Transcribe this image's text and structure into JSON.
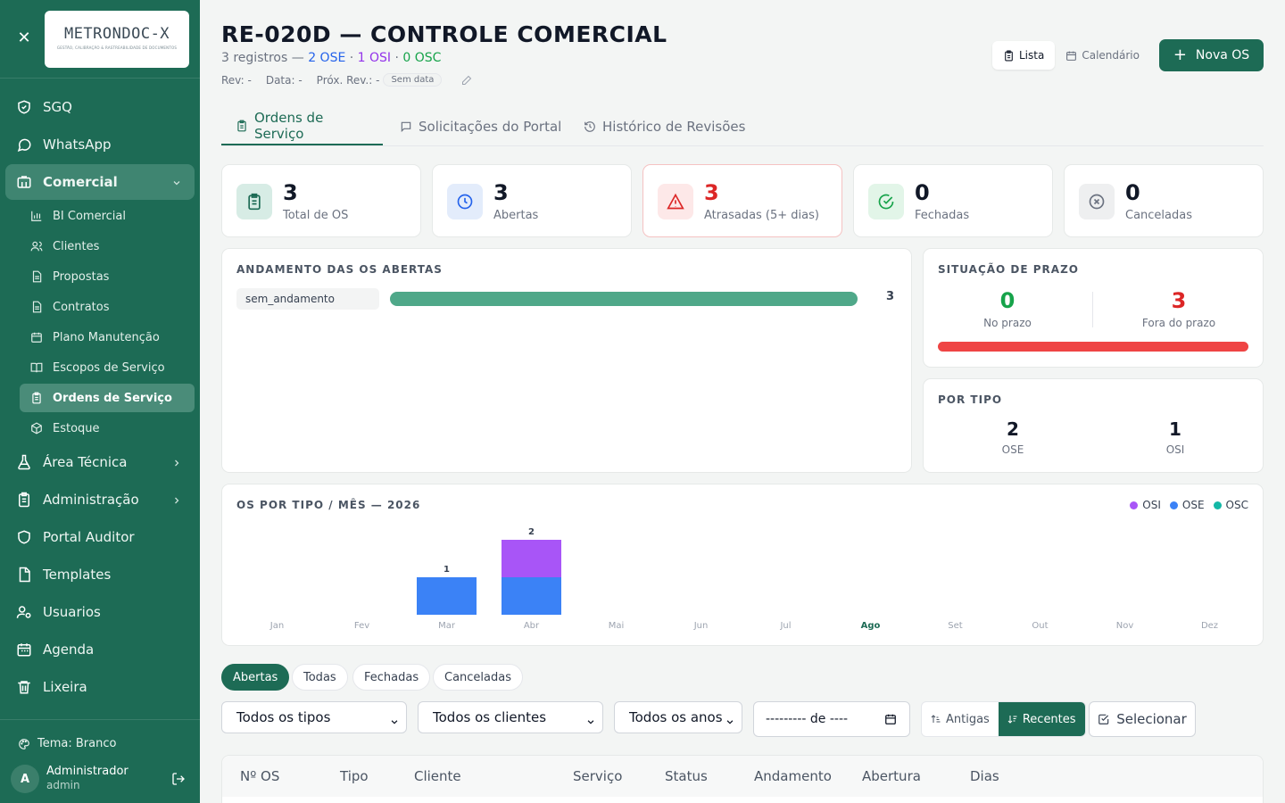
{
  "sidebar": {
    "logo_text": "METRONDOC-X",
    "logo_tagline": "GESTÃO, CALIBRAÇÃO & RASTREABILIDADE DE DOCUMENTOS",
    "items": [
      {
        "label": "SGQ",
        "icon": "shield-check-icon"
      },
      {
        "label": "WhatsApp",
        "icon": "chat-bubble-icon"
      },
      {
        "label": "Comercial",
        "icon": "building-icon"
      },
      {
        "label": "Área Técnica",
        "icon": "flask-icon"
      },
      {
        "label": "Administração",
        "icon": "clipboard-icon"
      },
      {
        "label": "Portal Auditor",
        "icon": "shield-icon"
      },
      {
        "label": "Templates",
        "icon": "file-icon"
      },
      {
        "label": "Usuarios",
        "icon": "user-cog-icon"
      },
      {
        "label": "Agenda",
        "icon": "calendar-icon"
      },
      {
        "label": "Lixeira",
        "icon": "trash-icon"
      }
    ],
    "sub_items": [
      {
        "label": "BI Comercial",
        "icon": "bar-chart-icon"
      },
      {
        "label": "Clientes",
        "icon": "users-icon"
      },
      {
        "label": "Propostas",
        "icon": "document-icon"
      },
      {
        "label": "Contratos",
        "icon": "document-icon"
      },
      {
        "label": "Plano Manutenção",
        "icon": "calendar-icon"
      },
      {
        "label": "Escopos de Serviço",
        "icon": "book-icon"
      },
      {
        "label": "Ordens de Serviço",
        "icon": "clipboard-list-icon"
      },
      {
        "label": "Estoque",
        "icon": "box-icon"
      }
    ],
    "theme_label": "Tema: Branco",
    "user": {
      "initial": "A",
      "name": "Administrador",
      "role": "admin"
    }
  },
  "header": {
    "title": "RE-020D — CONTROLE COMERCIAL",
    "subtitle_prefix": "3 registros — ",
    "subtitle_ose": "2 OSE",
    "subtitle_sep1": " · ",
    "subtitle_osi": "1 OSI",
    "subtitle_sep2": " · ",
    "subtitle_osc": "0 OSC",
    "rev_label": "Rev: -",
    "data_label": "Data: -",
    "prox_rev_label": "Próx. Rev.: -",
    "prox_rev_badge": "Sem data",
    "view_list": "Lista",
    "view_calendar": "Calendário",
    "new_button": "Nova OS"
  },
  "tabs": [
    {
      "label": "Ordens de Serviço",
      "active": true
    },
    {
      "label": "Solicitações do Portal",
      "active": false
    },
    {
      "label": "Histórico de Revisões",
      "active": false
    }
  ],
  "stats": [
    {
      "value": "3",
      "label": "Total de OS",
      "color": "#1d6b55",
      "bg": "#d7ece5"
    },
    {
      "value": "3",
      "label": "Abertas",
      "color": "#2563eb",
      "bg": "#e3ecfb"
    },
    {
      "value": "3",
      "label": "Atrasadas (5+ dias)",
      "color": "#dc2626",
      "bg": "#fde8e8"
    },
    {
      "value": "0",
      "label": "Fechadas",
      "color": "#16a34a",
      "bg": "#e2f5e8"
    },
    {
      "value": "0",
      "label": "Canceladas",
      "color": "#6b7280",
      "bg": "#eeeff0"
    }
  ],
  "andamento": {
    "title": "ANDAMENTO DAS OS ABERTAS",
    "rows": [
      {
        "label": "sem_andamento",
        "count": "3",
        "fraction": 1.0
      }
    ]
  },
  "prazo": {
    "title": "SITUAÇÃO DE PRAZO",
    "no_prazo_value": "0",
    "no_prazo_label": "No prazo",
    "fora_value": "3",
    "fora_label": "Fora do prazo",
    "fraction_fora": 1.0
  },
  "por_tipo": {
    "title": "POR TIPO",
    "items": [
      {
        "value": "2",
        "label": "OSE"
      },
      {
        "value": "1",
        "label": "OSI"
      }
    ]
  },
  "chart_data": {
    "type": "bar",
    "title": "OS POR TIPO / MÊS — 2026",
    "categories": [
      "Jan",
      "Fev",
      "Mar",
      "Abr",
      "Mai",
      "Jun",
      "Jul",
      "Ago",
      "Set",
      "Out",
      "Nov",
      "Dez"
    ],
    "highlight_category": "Ago",
    "stacked": true,
    "series": [
      {
        "name": "OSE",
        "color": "#3b82f6",
        "values": [
          0,
          0,
          1,
          1,
          0,
          0,
          0,
          0,
          0,
          0,
          0,
          0
        ]
      },
      {
        "name": "OSI",
        "color": "#a855f7",
        "values": [
          0,
          0,
          0,
          1,
          0,
          0,
          0,
          0,
          0,
          0,
          0,
          0
        ]
      },
      {
        "name": "OSC",
        "color": "#14b8a6",
        "values": [
          0,
          0,
          0,
          0,
          0,
          0,
          0,
          0,
          0,
          0,
          0,
          0
        ]
      }
    ],
    "legend_order": [
      "OSI",
      "OSE",
      "OSC"
    ],
    "totals": [
      0,
      0,
      1,
      2,
      0,
      0,
      0,
      0,
      0,
      0,
      0,
      0
    ],
    "legend_position": "top-right",
    "grid": false
  },
  "filters": {
    "status_pills": [
      "Abertas",
      "Todas",
      "Fechadas",
      "Canceladas"
    ],
    "active_pill": "Abertas",
    "tipo_select": "Todos os tipos",
    "cliente_select": "Todos os clientes",
    "ano_select": "Todos os anos",
    "month_input": "--------- de ----",
    "sort_old": "Antigas",
    "sort_new": "Recentes",
    "select_button": "Selecionar"
  },
  "table": {
    "columns": [
      "Nº OS",
      "Tipo",
      "Cliente",
      "Serviço",
      "Status",
      "Andamento",
      "Abertura",
      "Dias"
    ]
  }
}
